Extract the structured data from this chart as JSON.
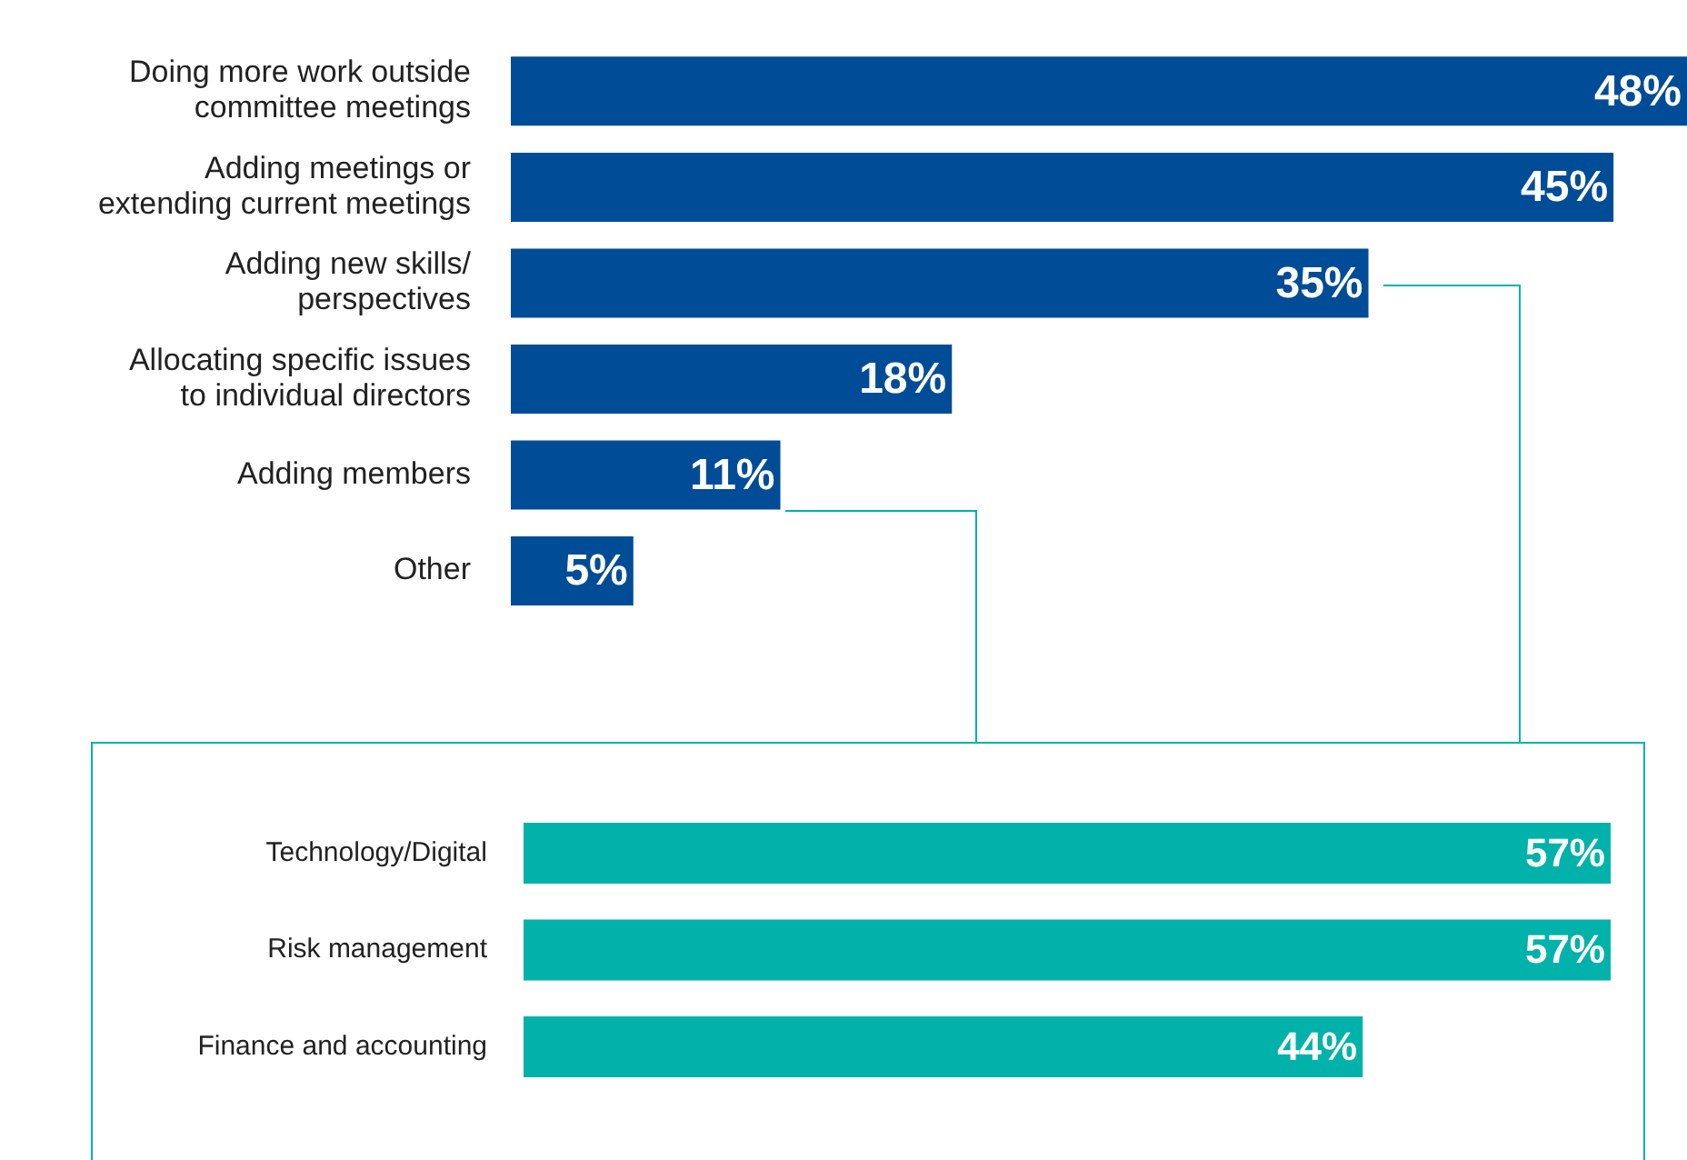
{
  "chart_data": [
    {
      "type": "bar",
      "orientation": "horizontal",
      "categories": [
        "Doing more work outside\ncommittee meetings",
        "Adding meetings or\nextending current meetings",
        "Adding new skills/\nperspectives",
        "Allocating specific issues\nto individual directors",
        "Adding members",
        "Other"
      ],
      "values": [
        48,
        45,
        35,
        18,
        11,
        5
      ],
      "value_labels": [
        "48%",
        "45%",
        "35%",
        "18%",
        "11%",
        "5%"
      ],
      "color": "#004c97"
    },
    {
      "type": "bar",
      "orientation": "horizontal",
      "categories": [
        "Technology/Digital",
        "Risk management",
        "Finance and accounting"
      ],
      "values": [
        57,
        57,
        44
      ],
      "value_labels": [
        "57%",
        "57%",
        "44%"
      ],
      "color": "#00b2a9"
    }
  ]
}
